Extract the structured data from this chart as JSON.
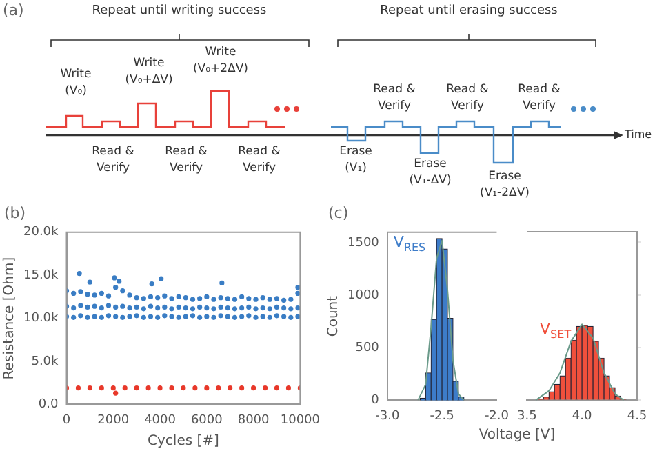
{
  "chart_data": [
    {
      "type": "other",
      "title": "(a)",
      "colors": [
        "#e8413a",
        "#4a8cc8"
      ],
      "annotations": [
        "Repeat until writing success",
        "Repeat until erasing success",
        "Write\n(V₀)",
        "Write\n(V₀+ΔV)",
        "Write\n(V₀+2ΔV)",
        "Read &\nVerify",
        "Read &\nVerify",
        "Read &\nVerify",
        "Read &\nVerify",
        "Read &\nVerify",
        "Read &\nVerify",
        "Erase\n(V₁)",
        "Erase\n(V₁-ΔV)",
        "Erase\n(V₁-2ΔV)",
        "Time"
      ]
    },
    {
      "type": "scatter",
      "title": "(b)",
      "xlabel": "Cycles [#]",
      "ylabel": "Resistance [Ohm]",
      "xlim": [
        0,
        10000
      ],
      "xticks": [
        0,
        2000,
        4000,
        6000,
        8000,
        10000
      ],
      "ylim": [
        0,
        20000
      ],
      "yticks": [
        {
          "value": 0,
          "label": "0.0"
        },
        {
          "value": 5000,
          "label": "5.0k"
        },
        {
          "value": 10000,
          "label": "10.0k"
        },
        {
          "value": 15000,
          "label": "15.0k"
        },
        {
          "value": 20000,
          "label": "20.0k"
        }
      ],
      "marker": "circle",
      "series": [
        {
          "color": "#3a7dc4",
          "x": [
            0,
            300,
            600,
            900,
            1200,
            1500,
            1800,
            2100,
            2400,
            2700,
            3000,
            3300,
            3600,
            3900,
            4200,
            4500,
            4800,
            5100,
            5400,
            5700,
            6000,
            6300,
            6600,
            6900,
            7200,
            7500,
            7800,
            8100,
            8400,
            8700,
            9000,
            9300,
            9600,
            9900,
            0,
            300,
            600,
            900,
            1200,
            1500,
            1800,
            2100,
            2400,
            2700,
            3000,
            3300,
            3600,
            3900,
            4200,
            4500,
            4800,
            5100,
            5400,
            5700,
            6000,
            6300,
            6600,
            6900,
            7200,
            7500,
            7800,
            8100,
            8400,
            8700,
            9000,
            9300,
            9600,
            9900,
            0,
            300,
            600,
            900,
            1200,
            1500,
            1800,
            2100,
            2400,
            2700,
            3000,
            3300,
            3600,
            3900,
            4200,
            4500,
            4800,
            5100,
            5400,
            5700,
            6000,
            6300,
            6600,
            6900,
            7200,
            7500,
            7800,
            8100,
            8400,
            8700,
            9000,
            9300,
            9600,
            9900,
            550,
            1000,
            2050,
            2250,
            3650,
            4050,
            6650,
            9900
          ],
          "values": [
            10200,
            10100,
            10300,
            10100,
            10200,
            10100,
            10300,
            10200,
            10100,
            10200,
            10300,
            10100,
            10200,
            10100,
            10300,
            10200,
            10100,
            10200,
            10300,
            10100,
            10200,
            10100,
            10300,
            10200,
            10100,
            10200,
            10300,
            10100,
            10200,
            10100,
            10300,
            10200,
            10100,
            10200,
            11400,
            11200,
            11500,
            11300,
            11400,
            11200,
            11500,
            11300,
            11400,
            11200,
            11300,
            11100,
            11400,
            11200,
            11300,
            11100,
            11300,
            11200,
            11100,
            11300,
            11200,
            11100,
            11300,
            11200,
            11100,
            11200,
            11300,
            11100,
            11200,
            11100,
            11300,
            11200,
            11100,
            11200,
            13200,
            12900,
            13100,
            12800,
            12700,
            12900,
            12600,
            13600,
            13200,
            12700,
            12400,
            12300,
            12500,
            12400,
            12600,
            12300,
            12500,
            12400,
            12200,
            12300,
            12500,
            12200,
            12400,
            12300,
            12200,
            12500,
            12300,
            12200,
            12400,
            12200,
            12300,
            12100,
            12200,
            12900,
            15200,
            14200,
            14700,
            14300,
            14000,
            14600,
            14100,
            13600
          ]
        },
        {
          "color": "#e8382a",
          "x": [
            0,
            500,
            1000,
            1500,
            2000,
            2100,
            2500,
            3000,
            3500,
            4000,
            4500,
            5000,
            5500,
            6000,
            6500,
            7000,
            7500,
            8000,
            8500,
            9000,
            9500,
            10000
          ],
          "values": [
            1900,
            1900,
            1900,
            1900,
            1900,
            1300,
            1900,
            1900,
            1900,
            1900,
            1900,
            1900,
            1900,
            1900,
            1900,
            1900,
            1900,
            1900,
            1900,
            1900,
            1900,
            1900
          ]
        }
      ]
    },
    {
      "type": "histogram",
      "title": "(c)",
      "xlabel": "Voltage [V]",
      "ylabel": "Count",
      "xlim": [
        -3.0,
        -2.0
      ],
      "xticks": [
        {
          "value": -3,
          "label": "-3.0"
        },
        {
          "value": -2.5,
          "label": "-2.5"
        },
        {
          "value": -2,
          "label": "-2.0"
        }
      ],
      "ylim": [
        0,
        1600
      ],
      "yticks": [
        0,
        500,
        1000,
        1500
      ],
      "series": [
        {
          "name": "V$_{RES}$",
          "color": "#3d7cc9",
          "bins": [
            -2.7,
            -2.65,
            -2.6,
            -2.55,
            -2.5,
            -2.45,
            -2.4,
            -2.35,
            -2.3
          ],
          "values": [
            20,
            260,
            770,
            1540,
            1440,
            780,
            180,
            30
          ]
        },
        {
          "type": "line",
          "color": "#6a9a8a",
          "marker": "none",
          "x": [
            -2.72,
            -2.65,
            -2.6,
            -2.55,
            -2.5,
            -2.45,
            -2.4,
            -2.35,
            -2.3
          ],
          "values": [
            0,
            150,
            700,
            1350,
            1520,
            1050,
            380,
            60,
            0
          ]
        }
      ]
    },
    {
      "type": "histogram",
      "tick_labels": "x",
      "xlim": [
        3.5,
        4.5
      ],
      "xticks": [
        {
          "value": 3.5,
          "label": "3.5"
        },
        {
          "value": 4,
          "label": "4.0"
        },
        {
          "value": 4.5,
          "label": "4.5"
        }
      ],
      "ylim": [
        0,
        1600
      ],
      "yticks": [
        0,
        500,
        1000,
        1500
      ],
      "series": [
        {
          "name": "V$_{SET}$",
          "color": "#f0503c",
          "bins": [
            3.6,
            3.65,
            3.7,
            3.75,
            3.8,
            3.85,
            3.9,
            3.95,
            4.0,
            4.05,
            4.1,
            4.15,
            4.2,
            4.25,
            4.3,
            4.35,
            4.4
          ],
          "values": [
            10,
            30,
            80,
            150,
            230,
            400,
            570,
            700,
            710,
            700,
            560,
            400,
            230,
            120,
            40,
            10
          ]
        },
        {
          "type": "line",
          "color": "#6a9a8a",
          "marker": "none",
          "x": [
            3.58,
            3.7,
            3.8,
            3.9,
            4.0,
            4.1,
            4.2,
            4.3,
            4.38
          ],
          "values": [
            0,
            90,
            260,
            560,
            720,
            590,
            260,
            60,
            0
          ]
        }
      ]
    }
  ]
}
